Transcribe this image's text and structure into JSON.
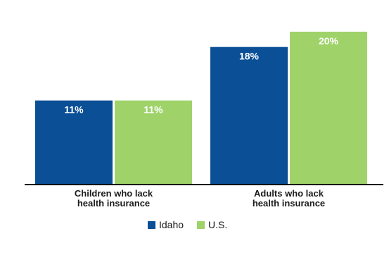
{
  "chart_data": {
    "type": "bar",
    "title": "",
    "categories": [
      [
        "Children who lack",
        "health insurance"
      ],
      [
        "Adults who lack",
        "health insurance"
      ]
    ],
    "series": [
      {
        "name": "Idaho",
        "values": [
          11,
          18
        ],
        "labels": [
          "11%",
          "18%"
        ],
        "color": "#0b4f96"
      },
      {
        "name": "U.S.",
        "values": [
          11,
          20
        ],
        "labels": [
          "11%",
          "20%"
        ],
        "color": "#9fd36a"
      }
    ],
    "ylim": [
      0,
      20
    ],
    "grid": false,
    "legend_placement": "bottom-center",
    "axis_color": "#000000"
  }
}
